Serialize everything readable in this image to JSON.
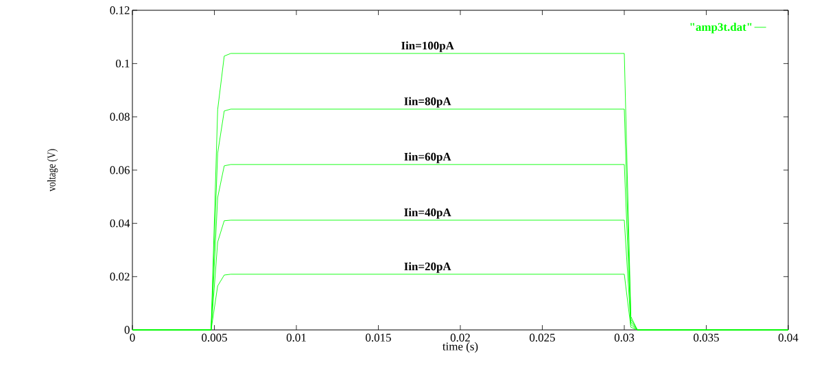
{
  "chart_data": {
    "type": "line",
    "xlabel": "time (s)",
    "ylabel": "voltage (V)",
    "x": [
      0,
      0.0048,
      0.0052,
      0.0056,
      0.006,
      0.03,
      0.0304,
      0.0308,
      0.04
    ],
    "series": [
      {
        "name": "\"amp3t.dat\"",
        "color": "#00ff00",
        "values": [
          0,
          0,
          0.0827,
          0.1028,
          0.1038,
          0.1038,
          0.005,
          0,
          0
        ]
      },
      {
        "color": "#00ff00",
        "values": [
          0,
          0,
          0.0664,
          0.0822,
          0.0829,
          0.0829,
          0.004,
          0,
          0
        ]
      },
      {
        "color": "#00ff00",
        "values": [
          0,
          0,
          0.0497,
          0.0616,
          0.0621,
          0.0621,
          0.003,
          0,
          0
        ]
      },
      {
        "color": "#00ff00",
        "values": [
          0,
          0,
          0.033,
          0.041,
          0.0412,
          0.0412,
          0.002,
          0,
          0
        ]
      },
      {
        "color": "#00ff00",
        "values": [
          0,
          0,
          0.0165,
          0.0206,
          0.0209,
          0.0209,
          0.001,
          0,
          0
        ]
      }
    ],
    "annotations": [
      "Iin=100pA",
      "Iin=80pA",
      "Iin=60pA",
      "Iin=40pA",
      "Iin=20pA"
    ],
    "xlim": [
      0,
      0.04
    ],
    "ylim": [
      0,
      0.12
    ],
    "xticks": [
      0,
      0.005,
      0.01,
      0.015,
      0.02,
      0.025,
      0.03,
      0.035,
      0.04
    ],
    "yticks": [
      0,
      0.02,
      0.04,
      0.06,
      0.08,
      0.1,
      0.12
    ],
    "legend": "top right",
    "marker": "none",
    "line_style": "solid"
  }
}
